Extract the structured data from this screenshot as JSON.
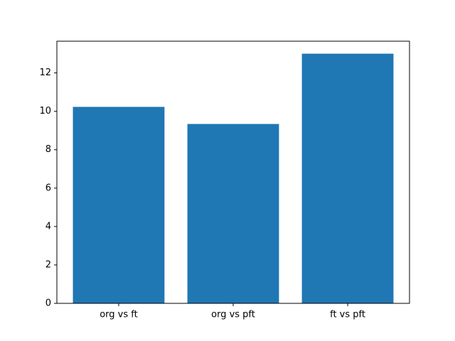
{
  "chart_data": {
    "type": "bar",
    "categories": [
      "org vs ft",
      "org vs pft",
      "ft vs pft"
    ],
    "values": [
      10.23,
      9.34,
      13.0
    ],
    "color": "#1f77b4",
    "ylim": [
      0,
      13.65
    ],
    "yticks": [
      0,
      2,
      4,
      6,
      8,
      10,
      12
    ],
    "grid": false
  }
}
